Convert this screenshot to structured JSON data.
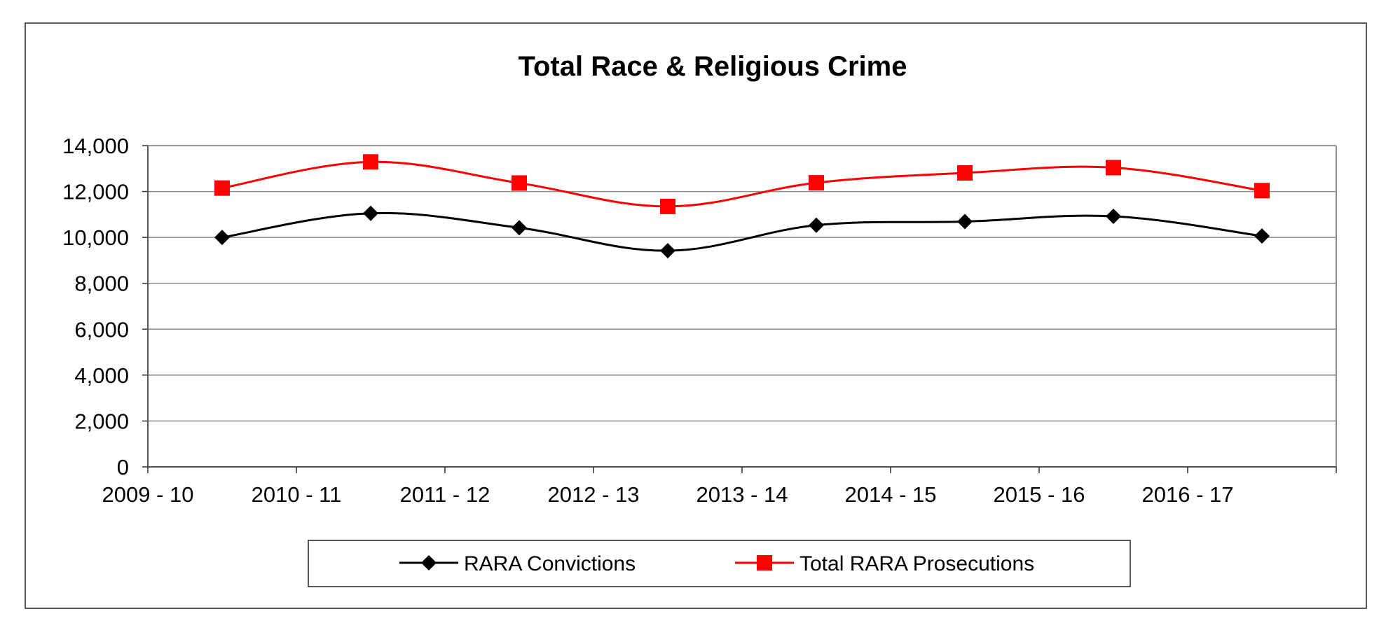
{
  "chart_data": {
    "type": "line",
    "title": "Total Race & Religious Crime",
    "xlabel": "",
    "ylabel": "",
    "categories": [
      "2009 - 10",
      "2010 - 11",
      "2011 - 12",
      "2012 - 13",
      "2013 - 14",
      "2014 - 15",
      "2015 - 16",
      "2016 - 17"
    ],
    "ylim": [
      0,
      14000
    ],
    "yticks": [
      0,
      2000,
      4000,
      6000,
      8000,
      10000,
      12000,
      14000
    ],
    "ytick_labels": [
      "0",
      "2,000",
      "4,000",
      "6,000",
      "8,000",
      "10,000",
      "12,000",
      "14,000"
    ],
    "grid": true,
    "legend_position": "bottom",
    "series": [
      {
        "name": "RARA Convictions",
        "color": "#000000",
        "marker": "diamond",
        "values": [
          10000,
          11050,
          10420,
          9420,
          10530,
          10690,
          10920,
          10060
        ]
      },
      {
        "name": "Total RARA Prosecutions",
        "color": "#ff0000",
        "marker": "square",
        "values": [
          12150,
          13290,
          12370,
          11350,
          12380,
          12810,
          13040,
          12040
        ]
      }
    ]
  }
}
